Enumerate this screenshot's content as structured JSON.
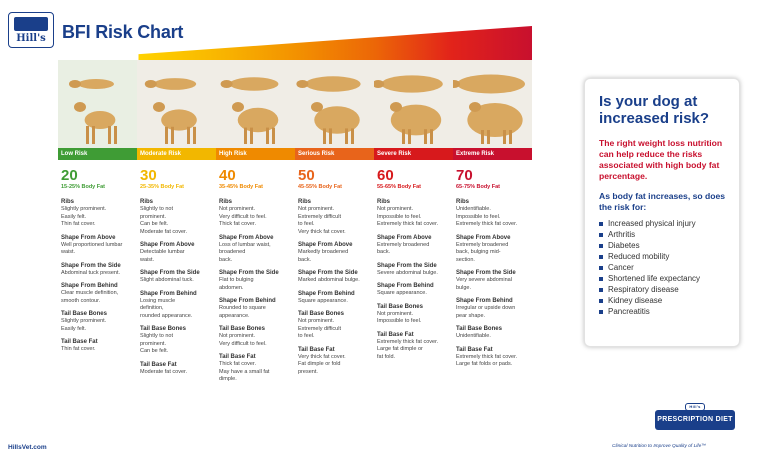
{
  "header": {
    "logo_text": "Hill's",
    "title": "BFI Risk Chart"
  },
  "colors": {
    "band_gradient": [
      "#ffd200",
      "#f6a800",
      "#ef7d00",
      "#e84e1b",
      "#d7191c",
      "#c8102e"
    ],
    "navy": "#1a3f8a",
    "red": "#c8102e"
  },
  "risk_columns": [
    {
      "risk": "Low Risk",
      "score": "20",
      "fat": "15-25% Body Fat",
      "color": "#3f9c35",
      "sections": [
        {
          "heading": "Ribs",
          "text": "Slightly prominent.\nEasily felt.\nThin fat cover."
        },
        {
          "heading": "Shape From Above",
          "text": "Well proportioned lumbar waist."
        },
        {
          "heading": "Shape From the Side",
          "text": "Abdominal tuck present."
        },
        {
          "heading": "Shape From Behind",
          "text": "Clear muscle definition,\nsmooth contour."
        },
        {
          "heading": "Tail Base Bones",
          "text": "Slightly prominent.\nEasily felt."
        },
        {
          "heading": "Tail Base Fat",
          "text": "Thin fat cover."
        }
      ]
    },
    {
      "risk": "Moderate Risk",
      "score": "30",
      "fat": "25-35% Body Fat",
      "color": "#f2b700",
      "sections": [
        {
          "heading": "Ribs",
          "text": "Slightly to not\nprominent.\nCan be felt.\nModerate fat cover."
        },
        {
          "heading": "Shape From Above",
          "text": "Detectable lumbar\nwaist."
        },
        {
          "heading": "Shape From the Side",
          "text": "Slight abdominal tuck."
        },
        {
          "heading": "Shape From Behind",
          "text": "Losing muscle\ndefinition,\nrounded appearance."
        },
        {
          "heading": "Tail Base Bones",
          "text": "Slightly to not\nprominent.\nCan be felt."
        },
        {
          "heading": "Tail Base Fat",
          "text": "Moderate fat cover."
        }
      ]
    },
    {
      "risk": "High Risk",
      "score": "40",
      "fat": "35-45% Body Fat",
      "color": "#ef8a00",
      "sections": [
        {
          "heading": "Ribs",
          "text": "Not prominent.\nVery difficult to feel.\nThick fat cover."
        },
        {
          "heading": "Shape From Above",
          "text": "Loss of lumbar waist,\nbroadened\nback."
        },
        {
          "heading": "Shape From the Side",
          "text": "Flat to bulging\nabdomen."
        },
        {
          "heading": "Shape From Behind",
          "text": "Rounded to square\nappearance."
        },
        {
          "heading": "Tail Base Bones",
          "text": "Not prominent.\nVery difficult to feel."
        },
        {
          "heading": "Tail Base Fat",
          "text": "Thick fat cover.\nMay have a small fat\ndimple."
        }
      ]
    },
    {
      "risk": "Serious Risk",
      "score": "50",
      "fat": "45-55% Body Fat",
      "color": "#e8641b",
      "sections": [
        {
          "heading": "Ribs",
          "text": "Not prominent.\nExtremely difficult\nto feel.\nVery thick fat cover."
        },
        {
          "heading": "Shape From Above",
          "text": "Markedly broadened\nback."
        },
        {
          "heading": "Shape From the Side",
          "text": "Marked abdominal bulge."
        },
        {
          "heading": "Shape From Behind",
          "text": "Square appearance."
        },
        {
          "heading": "Tail Base Bones",
          "text": "Not prominent.\nExtremely difficult\nto feel."
        },
        {
          "heading": "Tail Base Fat",
          "text": "Very thick fat cover.\nFat dimple or fold\npresent."
        }
      ]
    },
    {
      "risk": "Severe Risk",
      "score": "60",
      "fat": "55-65% Body Fat",
      "color": "#d7191c",
      "sections": [
        {
          "heading": "Ribs",
          "text": "Not prominent.\nImpossible to feel.\nExtremely thick fat cover."
        },
        {
          "heading": "Shape From Above",
          "text": "Extremely broadened\nback."
        },
        {
          "heading": "Shape From the Side",
          "text": "Severe abdominal bulge."
        },
        {
          "heading": "Shape From Behind",
          "text": "Square appearance."
        },
        {
          "heading": "Tail Base Bones",
          "text": "Not prominent.\nImpossible to feel."
        },
        {
          "heading": "Tail Base Fat",
          "text": "Extremely thick fat cover.\nLarge fat dimple or\nfat fold."
        }
      ]
    },
    {
      "risk": "Extreme Risk",
      "score": "70",
      "fat": "65-75% Body Fat",
      "color": "#c8102e",
      "sections": [
        {
          "heading": "Ribs",
          "text": "Unidentifiable.\nImpossible to feel.\nExtremely thick fat cover."
        },
        {
          "heading": "Shape From Above",
          "text": "Extremely broadened\nback, bulging mid-\nsection."
        },
        {
          "heading": "Shape From the Side",
          "text": "Very severe abdominal\nbulge."
        },
        {
          "heading": "Shape From Behind",
          "text": "Irregular or upside down\npear shape."
        },
        {
          "heading": "Tail Base Bones",
          "text": "Unidentifiable."
        },
        {
          "heading": "Tail Base Fat",
          "text": "Extremely thick fat cover.\nLarge fat folds or pads."
        }
      ]
    }
  ],
  "panel": {
    "question": "Is your dog at increased risk?",
    "red_text": "The right weight loss nutrition can help reduce the risks associated with high body fat percentage.",
    "blue_text": "As body fat increases, so does the risk for:",
    "risks": [
      "Increased physical injury",
      "Arthritis",
      "Diabetes",
      "Reduced mobility",
      "Cancer",
      "Shortened life expectancy",
      "Respiratory disease",
      "Kidney disease",
      "Pancreatitis"
    ]
  },
  "footer": {
    "url": "HillsVet.com",
    "brand": "PRESCRIPTION DIET",
    "brand_top": "Hill's",
    "tagline": "Clinical Nutrition to Improve Quality of Life™"
  }
}
